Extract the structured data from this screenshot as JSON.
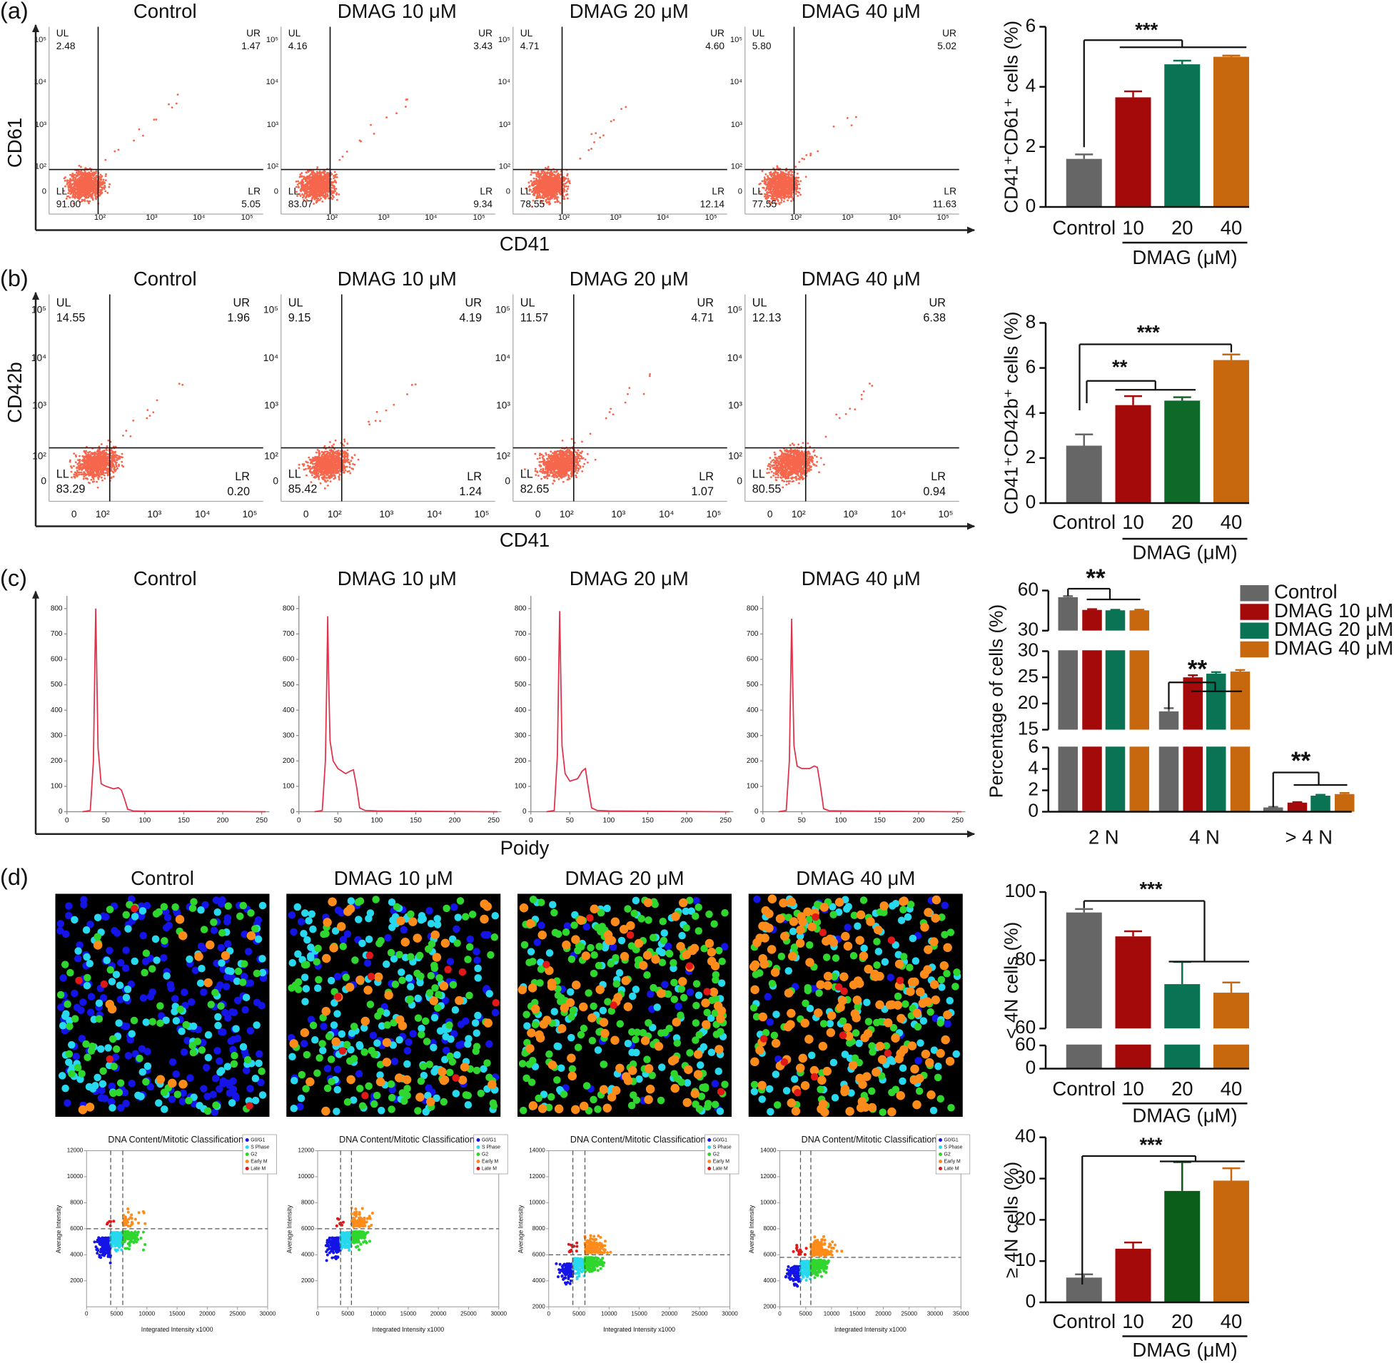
{
  "panel_labels": [
    "(a)",
    "(b)",
    "(c)",
    "(d)"
  ],
  "flow_a": {
    "x_label": "CD41",
    "y_label": "CD61",
    "quadrant_names": [
      "UL",
      "UR",
      "LL",
      "LR"
    ],
    "xticks": [
      "10²",
      "10³",
      "10⁴",
      "10⁵"
    ],
    "yticks": [
      "0",
      "10²",
      "10³",
      "10⁴",
      "10⁵"
    ],
    "plots": [
      {
        "title": "Control",
        "quadrants": [
          "2.48",
          "1.47",
          "91.00",
          "5.05"
        ]
      },
      {
        "title": "DMAG 10 μM",
        "quadrants": [
          "4.16",
          "3.43",
          "83.07",
          "9.34"
        ]
      },
      {
        "title": "DMAG 20 μM",
        "quadrants": [
          "4.71",
          "4.60",
          "78.55",
          "12.14"
        ]
      },
      {
        "title": "DMAG 40 μM",
        "quadrants": [
          "5.80",
          "5.02",
          "77.55",
          "11.63"
        ]
      }
    ]
  },
  "flow_b": {
    "x_label": "CD41",
    "y_label": "CD42b",
    "quadrant_names": [
      "UL",
      "UR",
      "LL",
      "LR"
    ],
    "xticks": [
      "0",
      "10²",
      "10³",
      "10⁴",
      "10⁵"
    ],
    "yticks": [
      "0",
      "10²",
      "10³",
      "10⁴",
      "10⁵"
    ],
    "plots": [
      {
        "title": "Control",
        "quadrants": [
          "14.55",
          "1.96",
          "83.29",
          "0.20"
        ]
      },
      {
        "title": "DMAG 10 μM",
        "quadrants": [
          "9.15",
          "4.19",
          "85.42",
          "1.24"
        ]
      },
      {
        "title": "DMAG 20 μM",
        "quadrants": [
          "11.57",
          "4.71",
          "82.65",
          "1.07"
        ]
      },
      {
        "title": "DMAG 40 μM",
        "quadrants": [
          "12.13",
          "6.38",
          "80.55",
          "0.94"
        ]
      }
    ]
  },
  "ploidy": {
    "x_label": "Poidy",
    "xlim": [
      0,
      260
    ],
    "xticks": [
      0,
      50,
      100,
      150,
      200,
      250
    ],
    "ylim": [
      0,
      850
    ],
    "yticks": [
      0,
      100,
      200,
      300,
      400,
      500,
      600,
      700,
      800
    ],
    "color": "#e0304a",
    "plots": [
      {
        "title": "Control",
        "x": [
          20,
          30,
          34,
          36,
          37,
          38,
          40,
          44,
          50,
          60,
          66,
          70,
          74,
          78,
          85,
          100,
          150,
          200,
          255
        ],
        "y": [
          0,
          5,
          200,
          600,
          800,
          600,
          250,
          110,
          100,
          90,
          95,
          85,
          50,
          10,
          3,
          2,
          2,
          1,
          0
        ]
      },
      {
        "title": "DMAG 10 μM",
        "x": [
          20,
          30,
          34,
          36,
          37,
          38,
          40,
          44,
          50,
          60,
          66,
          70,
          74,
          78,
          85,
          100,
          150,
          200,
          255
        ],
        "y": [
          0,
          5,
          200,
          550,
          770,
          550,
          280,
          200,
          170,
          150,
          160,
          165,
          100,
          15,
          5,
          3,
          2,
          1,
          0
        ]
      },
      {
        "title": "DMAG 20 μM",
        "x": [
          20,
          30,
          34,
          36,
          37,
          38,
          40,
          44,
          50,
          60,
          66,
          70,
          74,
          78,
          85,
          100,
          150,
          200,
          255
        ],
        "y": [
          0,
          5,
          220,
          600,
          790,
          600,
          260,
          150,
          120,
          130,
          160,
          170,
          90,
          15,
          5,
          3,
          2,
          1,
          0
        ]
      },
      {
        "title": "DMAG 40 μM",
        "x": [
          20,
          30,
          34,
          36,
          37,
          38,
          40,
          44,
          50,
          60,
          66,
          70,
          74,
          78,
          85,
          100,
          150,
          200,
          255
        ],
        "y": [
          0,
          5,
          200,
          560,
          760,
          560,
          260,
          180,
          170,
          170,
          180,
          175,
          100,
          12,
          4,
          3,
          2,
          1,
          0
        ]
      }
    ]
  },
  "imaging": {
    "titles": [
      "Control",
      "DMAG 10 μM",
      "DMAG 20 μM",
      "DMAG 40 μM"
    ],
    "classification": {
      "title": "DNA Content/Mitotic Classification",
      "x_label": "Integrated Intensity x1000",
      "y_label": "Average Intensity",
      "legend": [
        {
          "name": "G0/G1",
          "color": "#1414e6"
        },
        {
          "name": "S Phase",
          "color": "#28d8ee"
        },
        {
          "name": "G2",
          "color": "#2ed62e"
        },
        {
          "name": "Early M",
          "color": "#ff8c1a"
        },
        {
          "name": "Late M",
          "color": "#e01818"
        }
      ],
      "plots": [
        {
          "xlim": [
            0,
            30000
          ],
          "xticks": [
            0,
            5000,
            10000,
            15000,
            20000,
            25000,
            30000
          ],
          "ylim": [
            0,
            12000
          ],
          "yticks": [
            2000,
            4000,
            6000,
            8000,
            10000,
            12000
          ],
          "gates": {
            "x": [
              4000,
              6000
            ],
            "y": 6000
          }
        },
        {
          "xlim": [
            0,
            30000
          ],
          "xticks": [
            0,
            5000,
            10000,
            15000,
            20000,
            25000,
            30000
          ],
          "ylim": [
            0,
            12000
          ],
          "yticks": [
            2000,
            4000,
            6000,
            8000,
            10000,
            12000
          ],
          "gates": {
            "x": [
              3800,
              5600
            ],
            "y": 6000
          }
        },
        {
          "xlim": [
            0,
            30000
          ],
          "xticks": [
            0,
            5000,
            10000,
            15000,
            20000,
            25000,
            30000
          ],
          "ylim": [
            2000,
            14000
          ],
          "yticks": [
            2000,
            4000,
            6000,
            8000,
            10000,
            12000,
            14000
          ],
          "gates": {
            "x": [
              4000,
              6000
            ],
            "y": 6000
          }
        },
        {
          "xlim": [
            0,
            35000
          ],
          "xticks": [
            0,
            5000,
            10000,
            15000,
            20000,
            25000,
            30000,
            35000
          ],
          "ylim": [
            2000,
            14000
          ],
          "yticks": [
            2000,
            4000,
            6000,
            8000,
            10000,
            12000,
            14000
          ],
          "gates": {
            "x": [
              4000,
              6000
            ],
            "y": 5800
          }
        }
      ]
    }
  },
  "chart_data": [
    {
      "type": "bar",
      "ylabel": "CD41⁺CD61⁺ cells (%)",
      "categories": [
        "Control",
        "10",
        "20",
        "40"
      ],
      "group_label": "DMAG (μM)",
      "values": [
        1.6,
        3.65,
        4.75,
        5.0
      ],
      "errors": [
        0.15,
        0.2,
        0.12,
        0.04
      ],
      "colors": [
        "#666666",
        "#a50a0a",
        "#0a7354",
        "#c8680e"
      ],
      "ylim": [
        0,
        6
      ],
      "yticks": [
        0,
        2,
        4,
        6
      ],
      "significance": [
        "***"
      ]
    },
    {
      "type": "bar",
      "ylabel": "CD41⁺CD42b⁺ cells (%)",
      "categories": [
        "Control",
        "10",
        "20",
        "40"
      ],
      "group_label": "DMAG (μM)",
      "values": [
        2.55,
        4.35,
        4.55,
        6.35
      ],
      "errors": [
        0.5,
        0.4,
        0.15,
        0.25
      ],
      "colors": [
        "#666666",
        "#a50a0a",
        "#0f6a2a",
        "#c8680e"
      ],
      "ylim": [
        0,
        8
      ],
      "yticks": [
        0,
        2,
        4,
        6,
        8
      ],
      "significance": [
        "**",
        "***"
      ]
    },
    {
      "type": "grouped-bar",
      "ylabel": "Percentage of cells (%)",
      "categories": [
        "2 N",
        "4 N",
        "> 4 N"
      ],
      "series": [
        {
          "name": "Control",
          "color": "#666666",
          "values": [
            55,
            18.5,
            0.4
          ],
          "errors": [
            0.8,
            0.6,
            0.05
          ]
        },
        {
          "name": "DMAG 10 μM",
          "color": "#a50a0a",
          "values": [
            45.5,
            25,
            0.85
          ],
          "errors": [
            0.6,
            0.4,
            0.05
          ]
        },
        {
          "name": "DMAG 20 μM",
          "color": "#0a7354",
          "values": [
            45.2,
            25.7,
            1.5
          ],
          "errors": [
            0.4,
            0.3,
            0.08
          ]
        },
        {
          "name": "DMAG 40 μM",
          "color": "#c8680e",
          "values": [
            45.2,
            26.1,
            1.65
          ],
          "errors": [
            0.5,
            0.3,
            0.1
          ]
        }
      ],
      "axis_segments": [
        {
          "ylim": [
            30,
            60
          ],
          "yticks": [
            30,
            60
          ]
        },
        {
          "ylim": [
            15,
            30
          ],
          "yticks": [
            15,
            20,
            25,
            30
          ]
        },
        {
          "ylim": [
            0,
            6
          ],
          "yticks": [
            0,
            2,
            4,
            6
          ]
        }
      ],
      "significance": [
        "**",
        "**",
        "**"
      ]
    },
    {
      "type": "bar",
      "ylabel": "< 4N cells (%)",
      "categories": [
        "Control",
        "10",
        "20",
        "40"
      ],
      "group_label": "DMAG (μM)",
      "values": [
        94,
        87,
        73,
        70.5
      ],
      "errors": [
        1,
        1.5,
        6.5,
        3
      ],
      "colors": [
        "#666666",
        "#a50a0a",
        "#0a7354",
        "#c8680e"
      ],
      "axis_segments": [
        {
          "ylim": [
            60,
            100
          ],
          "yticks": [
            60,
            80,
            100
          ]
        },
        {
          "ylim": [
            0,
            60
          ],
          "yticks": [
            0,
            60
          ]
        }
      ],
      "significance": [
        "***"
      ]
    },
    {
      "type": "bar",
      "ylabel": "≥ 4N cells (%)",
      "categories": [
        "Control",
        "10",
        "20",
        "40"
      ],
      "group_label": "DMAG (μM)",
      "values": [
        6,
        13,
        27,
        29.5
      ],
      "errors": [
        0.8,
        1.5,
        7,
        3
      ],
      "colors": [
        "#666666",
        "#a50a0a",
        "#0b5e1a",
        "#c8680e"
      ],
      "ylim": [
        0,
        40
      ],
      "yticks": [
        0,
        10,
        20,
        30,
        40
      ],
      "significance": [
        "***"
      ]
    }
  ]
}
